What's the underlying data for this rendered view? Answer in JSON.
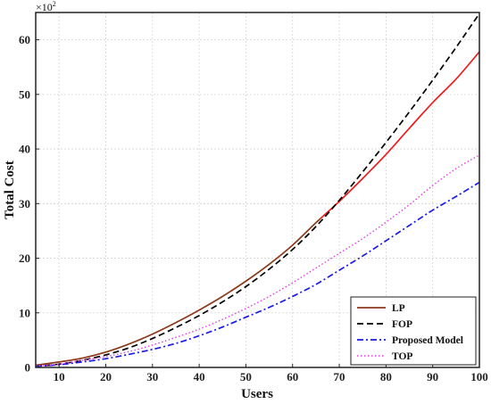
{
  "chart_data": {
    "type": "line",
    "xlabel": "Users",
    "ylabel": "Total Cost",
    "y_multiplier_base": "×10",
    "y_multiplier_exp": "2",
    "xlim": [
      5,
      100
    ],
    "ylim": [
      0,
      65
    ],
    "x_ticks": [
      10,
      20,
      30,
      40,
      50,
      60,
      70,
      80,
      90,
      100
    ],
    "y_ticks": [
      0,
      10,
      20,
      30,
      40,
      50,
      60
    ],
    "grid": true,
    "legend_position": "bottom-right",
    "x": [
      5,
      10,
      15,
      20,
      25,
      30,
      35,
      40,
      45,
      50,
      55,
      60,
      65,
      70,
      75,
      80,
      85,
      90,
      95,
      100
    ],
    "series": [
      {
        "name": "LP",
        "color": "#8B3A1A",
        "color_after_x": 66,
        "color_after": "#EE1C1C",
        "dash": "solid",
        "values": [
          0.4,
          1.0,
          1.7,
          2.8,
          4.3,
          6.1,
          8.2,
          10.5,
          13.0,
          15.8,
          18.9,
          22.4,
          26.5,
          30.4,
          34.6,
          39.0,
          43.8,
          48.5,
          52.8,
          57.8
        ]
      },
      {
        "name": "FOP",
        "color": "#000000",
        "dash": "dashed",
        "values": [
          0.2,
          0.6,
          1.3,
          2.3,
          3.6,
          5.3,
          7.3,
          9.5,
          12.0,
          14.8,
          18.0,
          21.6,
          25.8,
          30.6,
          35.8,
          41.2,
          46.8,
          52.6,
          58.6,
          64.8
        ]
      },
      {
        "name": "Proposed Model",
        "color": "#1A1AE6",
        "dash": "dashdot",
        "values": [
          0.2,
          0.5,
          1.0,
          1.6,
          2.4,
          3.3,
          4.4,
          5.8,
          7.4,
          9.2,
          11.0,
          13.0,
          15.2,
          17.8,
          20.4,
          23.2,
          26.0,
          28.8,
          31.3,
          33.9
        ]
      },
      {
        "name": "TOP",
        "color": "#E43AE4",
        "dash": "dotted",
        "values": [
          0.3,
          0.6,
          1.3,
          2.0,
          2.9,
          4.1,
          5.5,
          7.0,
          8.8,
          10.8,
          13.0,
          15.5,
          18.2,
          20.9,
          23.6,
          26.6,
          29.8,
          33.3,
          36.4,
          38.9
        ]
      }
    ]
  }
}
